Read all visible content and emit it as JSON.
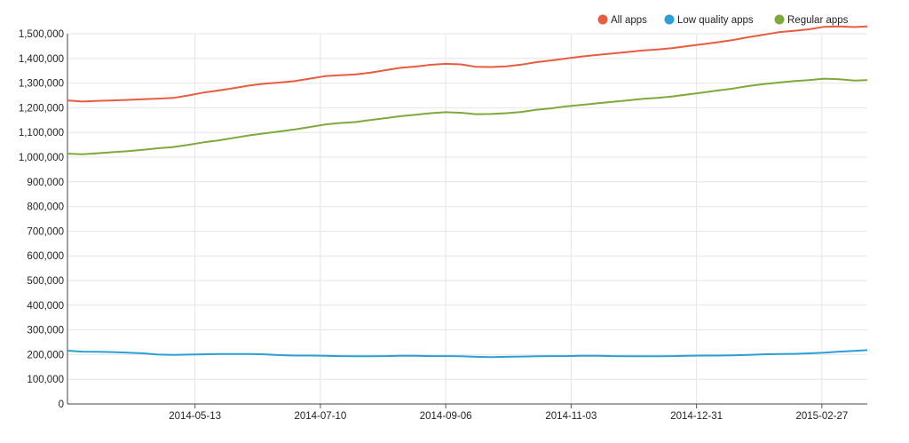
{
  "chart_data": {
    "type": "line",
    "title": "",
    "xlabel": "",
    "ylabel": "",
    "ylim": [
      0,
      1500000
    ],
    "x_range": [
      "2014-03-15",
      "2015-03-20"
    ],
    "y_ticks": [
      0,
      100000,
      200000,
      300000,
      400000,
      500000,
      600000,
      700000,
      800000,
      900000,
      1000000,
      1100000,
      1200000,
      1300000,
      1400000,
      1500000
    ],
    "y_tick_labels": [
      "0",
      "100,000",
      "200,000",
      "300,000",
      "400,000",
      "500,000",
      "600,000",
      "700,000",
      "800,000",
      "900,000",
      "1,000,000",
      "1,100,000",
      "1,200,000",
      "1,300,000",
      "1,400,000",
      "1,500,000"
    ],
    "x_ticks": [
      "2014-05-13",
      "2014-07-10",
      "2014-09-06",
      "2014-11-03",
      "2014-12-31",
      "2015-02-27"
    ],
    "grid": true,
    "legend_position": "top-right",
    "x": [
      "2014-03-15",
      "2014-03-22",
      "2014-03-29",
      "2014-04-05",
      "2014-04-12",
      "2014-04-19",
      "2014-04-26",
      "2014-05-03",
      "2014-05-10",
      "2014-05-17",
      "2014-05-24",
      "2014-05-31",
      "2014-06-07",
      "2014-06-14",
      "2014-06-21",
      "2014-06-28",
      "2014-07-05",
      "2014-07-12",
      "2014-07-19",
      "2014-07-26",
      "2014-08-02",
      "2014-08-09",
      "2014-08-16",
      "2014-08-23",
      "2014-08-30",
      "2014-09-06",
      "2014-09-13",
      "2014-09-20",
      "2014-09-27",
      "2014-10-04",
      "2014-10-11",
      "2014-10-18",
      "2014-10-25",
      "2014-11-01",
      "2014-11-08",
      "2014-11-15",
      "2014-11-22",
      "2014-11-29",
      "2014-12-06",
      "2014-12-13",
      "2014-12-20",
      "2014-12-27",
      "2015-01-03",
      "2015-01-10",
      "2015-01-17",
      "2015-01-24",
      "2015-01-31",
      "2015-02-07",
      "2015-02-14",
      "2015-02-21",
      "2015-02-28",
      "2015-03-07",
      "2015-03-14",
      "2015-03-20"
    ],
    "series": [
      {
        "name": "All apps",
        "color": "#e85c3f",
        "values": [
          1230000,
          1225000,
          1228000,
          1230000,
          1232000,
          1235000,
          1237000,
          1240000,
          1250000,
          1262000,
          1270000,
          1280000,
          1290000,
          1298000,
          1302000,
          1308000,
          1318000,
          1328000,
          1332000,
          1335000,
          1342000,
          1352000,
          1362000,
          1367000,
          1374000,
          1378000,
          1376000,
          1366000,
          1365000,
          1368000,
          1375000,
          1385000,
          1392000,
          1400000,
          1408000,
          1414000,
          1420000,
          1426000,
          1432000,
          1436000,
          1442000,
          1450000,
          1458000,
          1466000,
          1475000,
          1486000,
          1496000,
          1506000,
          1512000,
          1518000,
          1528000,
          1530000,
          1527000,
          1530000
        ]
      },
      {
        "name": "Low quality apps",
        "color": "#2a9fd8",
        "values": [
          216000,
          212000,
          211000,
          210000,
          208000,
          205000,
          200000,
          199000,
          200000,
          201000,
          202000,
          202000,
          202000,
          201000,
          198000,
          196000,
          196000,
          195000,
          194000,
          193000,
          193000,
          194000,
          195000,
          195000,
          194000,
          194000,
          193000,
          191000,
          190000,
          191000,
          192000,
          193000,
          194000,
          194000,
          195000,
          195000,
          194000,
          193000,
          193000,
          193000,
          194000,
          195000,
          196000,
          196000,
          197000,
          199000,
          201000,
          202000,
          203000,
          205000,
          208000,
          212000,
          215000,
          218000
        ]
      },
      {
        "name": "Regular apps",
        "color": "#7daa3a",
        "values": [
          1014000,
          1012000,
          1016000,
          1020000,
          1024000,
          1030000,
          1036000,
          1041000,
          1050000,
          1060000,
          1068000,
          1078000,
          1088000,
          1096000,
          1104000,
          1112000,
          1122000,
          1132000,
          1138000,
          1142000,
          1150000,
          1158000,
          1166000,
          1172000,
          1178000,
          1182000,
          1180000,
          1174000,
          1175000,
          1178000,
          1183000,
          1192000,
          1198000,
          1206000,
          1212000,
          1218000,
          1224000,
          1230000,
          1236000,
          1240000,
          1246000,
          1254000,
          1262000,
          1270000,
          1278000,
          1288000,
          1296000,
          1302000,
          1308000,
          1312000,
          1318000,
          1316000,
          1310000,
          1312000
        ]
      }
    ]
  }
}
